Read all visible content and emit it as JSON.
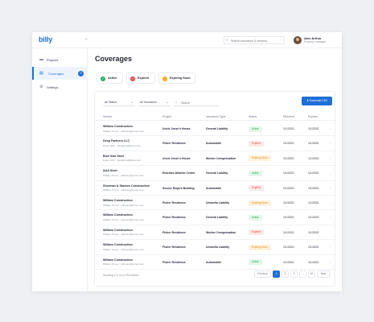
{
  "app": {
    "logo": "billy",
    "collapse_icon": "double-chevron-left-icon"
  },
  "topbar": {
    "search_placeholder": "Search insurance & vendors",
    "user": {
      "name": "Alex Arthur",
      "role": "Property manager"
    }
  },
  "sidebar": {
    "items": [
      {
        "label": "Projects",
        "icon": "folder-icon"
      },
      {
        "label": "Coverages",
        "icon": "document-icon",
        "badge": "2",
        "active": true
      },
      {
        "label": "Settings",
        "icon": "gear-icon"
      }
    ]
  },
  "page": {
    "title": "Coverages"
  },
  "legend": [
    {
      "label": "Active",
      "symbol": "✓",
      "color": "#22b35a"
    },
    {
      "label": "Expired",
      "symbol": "×",
      "color": "#e5484d"
    },
    {
      "label": "Expiring Soon",
      "symbol": "!",
      "color": "#f5a524"
    }
  ],
  "filters": {
    "status": "All Status",
    "insurance": "All Insurance",
    "search_placeholder": "Search",
    "download_label": "Download CSV"
  },
  "table": {
    "headers": [
      "Vendor",
      "Project",
      "Insurance Type",
      "Status",
      "Effective",
      "Expires"
    ],
    "rows": [
      {
        "vendor": "William Construction",
        "contact": "William Turner · wiltuner@turner.com",
        "project": "Uncle Jesse's House",
        "type": "General Liability",
        "status": "Active",
        "effective": "1/1/2021",
        "expires": "1/1/2021"
      },
      {
        "vendor": "Deep Partners LLC",
        "contact": "Deep John · deepjohn@deep.com",
        "project": "Fisher Residence",
        "type": "Automobile",
        "status": "Expired",
        "effective": "1/1/2021",
        "expires": "1/1/2021"
      },
      {
        "vendor": "Blue Star Steel",
        "contact": "Deep John · deepjohn@deep.com",
        "project": "Uncle Jesse's House",
        "type": "Worker Compensation",
        "status": "Expiring Soon",
        "effective": "1/1/2021",
        "expires": "1/1/2021"
      },
      {
        "vendor": "AAA Steel",
        "contact": "William Turner · wiltuner@turner.com",
        "project": "Emirates Atlantic Center",
        "type": "General Liability",
        "status": "Active",
        "effective": "1/1/2021",
        "expires": "1/1/2021"
      },
      {
        "vendor": "Sherman & Starken Construction",
        "contact": "William Turner · wiltuner@turner.com",
        "project": "Source Empire Building",
        "type": "Automobile",
        "status": "Expired",
        "effective": "1/1/2021",
        "expires": "1/1/2021"
      },
      {
        "vendor": "William Construction",
        "contact": "William Turner · wiltuner@turner.com",
        "project": "Fisher Residence",
        "type": "Umbrella Liability",
        "status": "Expiring Soon",
        "effective": "1/1/2021",
        "expires": "1/1/2021"
      },
      {
        "vendor": "William Construction",
        "contact": "William Turner · wiltuner@turner.com",
        "project": "Fisher Residence",
        "type": "General Liability",
        "status": "Active",
        "effective": "1/1/2021",
        "expires": "1/1/2021"
      },
      {
        "vendor": "William Construction",
        "contact": "William Turner · wiltuner@turner.com",
        "project": "Fisher Residence",
        "type": "Worker Compensation",
        "status": "Expired",
        "effective": "1/1/2021",
        "expires": "1/1/2021"
      },
      {
        "vendor": "William Construction",
        "contact": "William Turner · wiltuner@turner.com",
        "project": "Fisher Residence",
        "type": "Umbrella Liability",
        "status": "Expiring Soon",
        "effective": "1/1/2021",
        "expires": "1/1/2021"
      },
      {
        "vendor": "William Construction",
        "contact": "William Turner · wiltuner@turner.com",
        "project": "Fisher Residence",
        "type": "Automobile",
        "status": "Active",
        "effective": "1/1/2021",
        "expires": "1/1/2021"
      }
    ],
    "status_styles": {
      "Active": {
        "bg": "#e3f6ea",
        "fg": "#22a355"
      },
      "Expired": {
        "bg": "#fde7e8",
        "fg": "#e5484d"
      },
      "Expiring Soon": {
        "bg": "#fff1dc",
        "fg": "#e08a10"
      }
    }
  },
  "footer": {
    "showing": "Showing 1 to 10 of 294 entries",
    "pages": [
      "Previous",
      "1",
      "2",
      "3",
      "...",
      "10",
      "Next"
    ],
    "active_page": "1"
  }
}
